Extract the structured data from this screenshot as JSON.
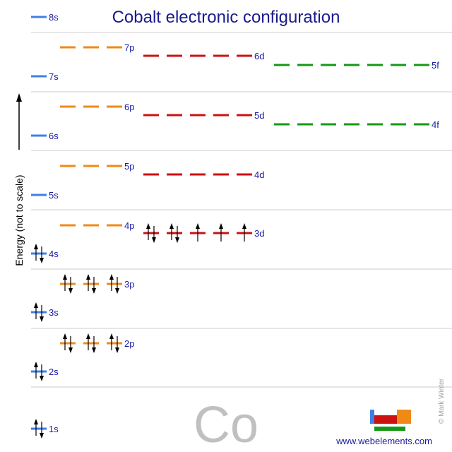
{
  "title": "Cobalt electronic configuration",
  "axis_label": "Energy (not to scale)",
  "element_symbol": "Co",
  "website": "www.webelements.com",
  "credit": "© Mark Winter",
  "colors": {
    "s": "#3f7fe8",
    "p": "#f08a17",
    "d": "#cc1111",
    "f": "#159915",
    "grid": "#cccccc",
    "label": "#1a1aa0",
    "title": "#1a1a8c"
  },
  "orbitals": [
    {
      "label": "1s",
      "type": "s",
      "electrons": 2
    },
    {
      "label": "2s",
      "type": "s",
      "electrons": 2
    },
    {
      "label": "2p",
      "type": "p",
      "electrons": 6
    },
    {
      "label": "3s",
      "type": "s",
      "electrons": 2
    },
    {
      "label": "3p",
      "type": "p",
      "electrons": 6
    },
    {
      "label": "4s",
      "type": "s",
      "electrons": 2
    },
    {
      "label": "3d",
      "type": "d",
      "electrons": 7
    },
    {
      "label": "4p",
      "type": "p",
      "electrons": 0
    },
    {
      "label": "5s",
      "type": "s",
      "electrons": 0
    },
    {
      "label": "4d",
      "type": "d",
      "electrons": 0
    },
    {
      "label": "5p",
      "type": "p",
      "electrons": 0
    },
    {
      "label": "6s",
      "type": "s",
      "electrons": 0
    },
    {
      "label": "4f",
      "type": "f",
      "electrons": 0
    },
    {
      "label": "5d",
      "type": "d",
      "electrons": 0
    },
    {
      "label": "6p",
      "type": "p",
      "electrons": 0
    },
    {
      "label": "7s",
      "type": "s",
      "electrons": 0
    },
    {
      "label": "5f",
      "type": "f",
      "electrons": 0
    },
    {
      "label": "6d",
      "type": "d",
      "electrons": 0
    },
    {
      "label": "7p",
      "type": "p",
      "electrons": 0
    },
    {
      "label": "8s",
      "type": "s",
      "electrons": 0
    }
  ]
}
